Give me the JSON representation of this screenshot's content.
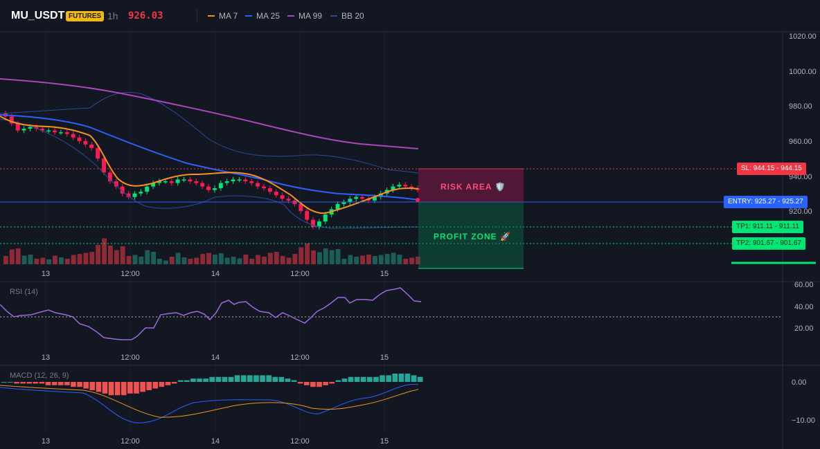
{
  "header": {
    "symbol": "MU_USDT",
    "badge": "FUTURES",
    "timeframe": "1h",
    "last_price": "926.03",
    "indicators": [
      {
        "label": "MA 7",
        "color": "#f7931a"
      },
      {
        "label": "MA 25",
        "color": "#2962ff"
      },
      {
        "label": "MA 99",
        "color": "#ab47bc"
      },
      {
        "label": "BB 20",
        "color": "#2a4a9a"
      }
    ]
  },
  "price_axis": {
    "ticks": [
      "1020.00",
      "1000.00",
      "980.00",
      "960.00",
      "940.00",
      "920.00"
    ]
  },
  "time_axis": {
    "ticks": [
      "13",
      "12:00",
      "14",
      "12:00",
      "15"
    ]
  },
  "zones": {
    "risk": "RISK AREA 🛡️",
    "profit": "PROFIT ZONE 🚀"
  },
  "levels": {
    "sl": {
      "label": "SL: 944.15",
      "value": "944.15"
    },
    "entry": {
      "label": "ENTRY: 925.27",
      "value": "925.27"
    },
    "tp1": {
      "label": "TP1: 911.11",
      "value": "911.11"
    },
    "tp2": {
      "label": "TP2: 901.67",
      "value": "901.67"
    }
  },
  "rsi": {
    "title": "RSI (14)",
    "ticks": [
      "60.00",
      "40.00",
      "20.00"
    ]
  },
  "macd": {
    "title": "MACD (12, 26, 9)",
    "ticks": [
      "0.00",
      "−10.00"
    ]
  },
  "colors": {
    "up": "#26a69a",
    "up_bright": "#00e676",
    "down": "#f23645",
    "down_candle": "#ff1a53",
    "volume_up": "#1b5e58",
    "volume_down": "#8e2a35",
    "rsi_line": "#9c6ade",
    "macd_line": "#2962ff",
    "signal_line": "#f7931a"
  }
}
